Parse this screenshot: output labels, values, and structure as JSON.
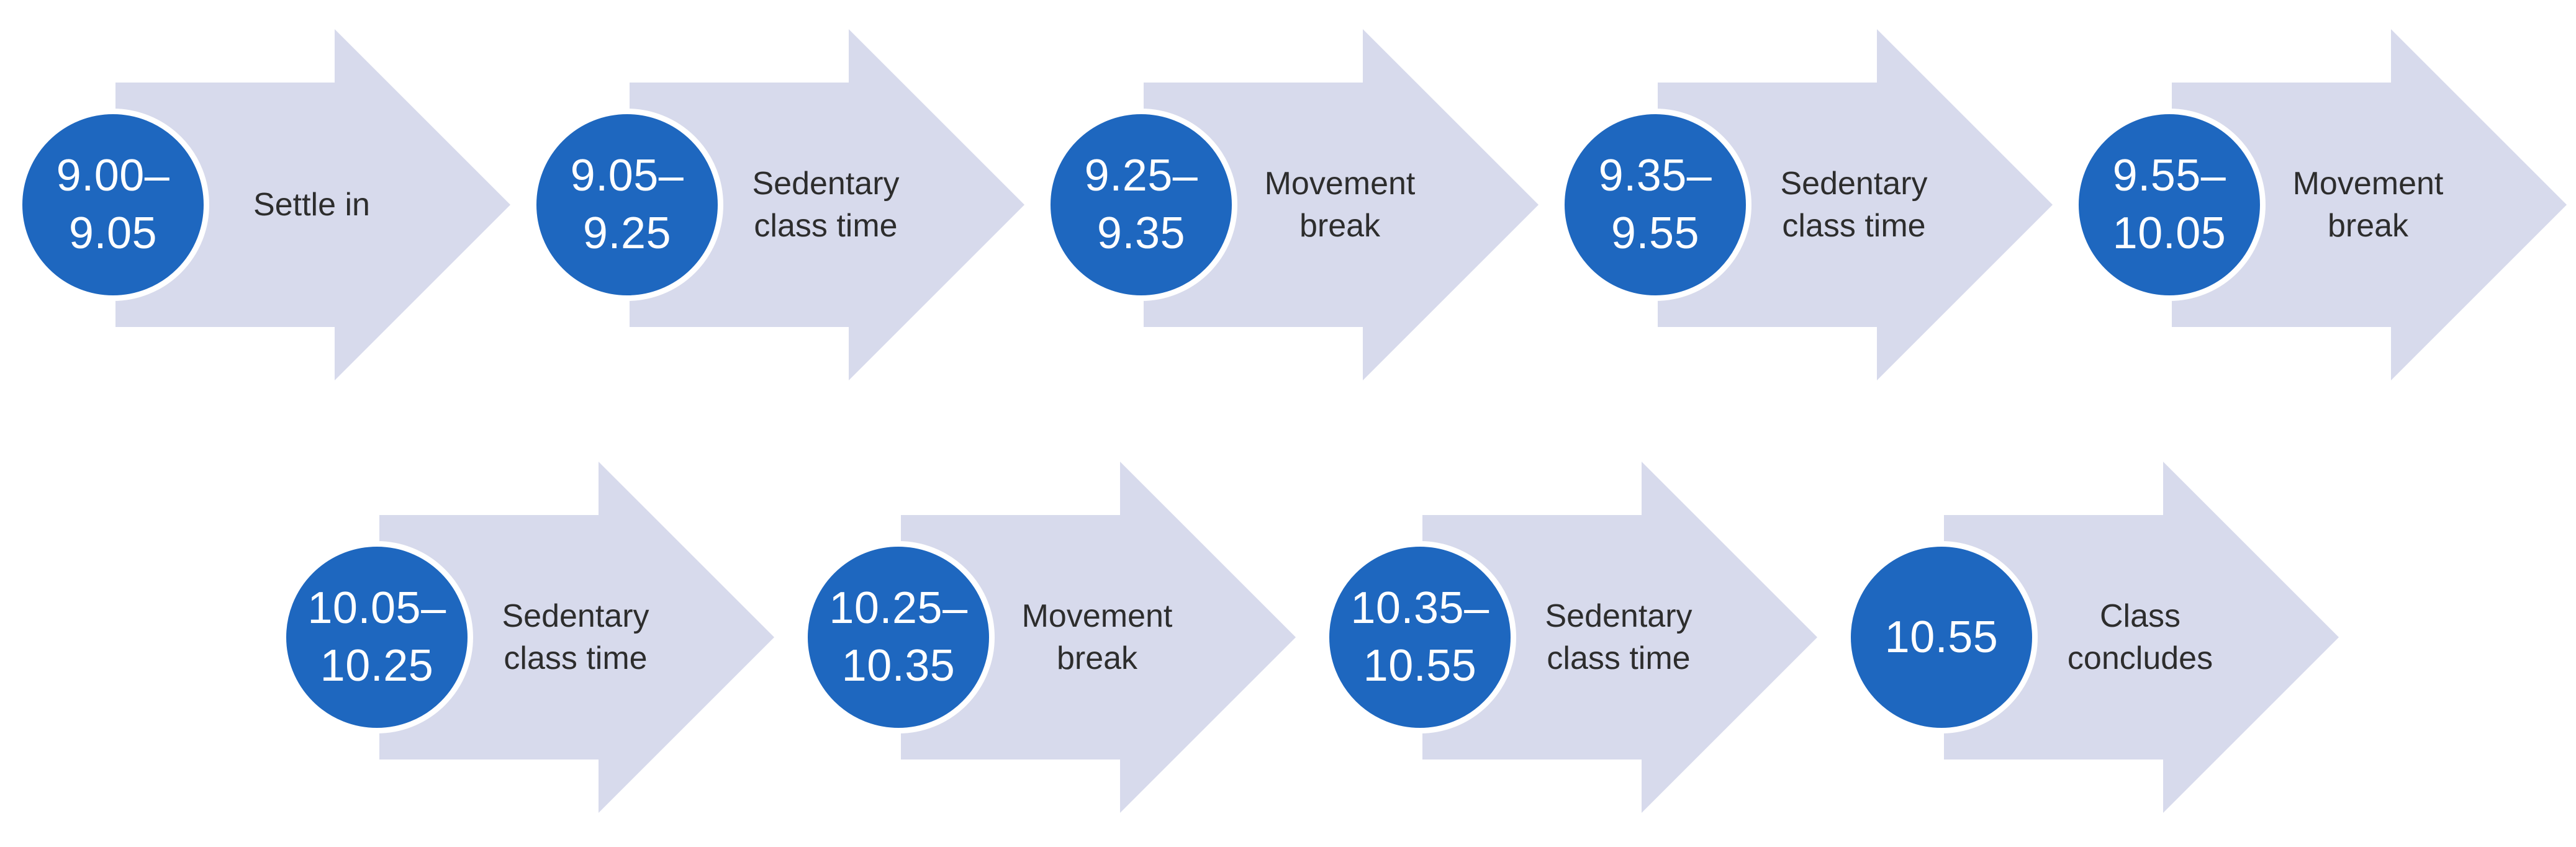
{
  "diagram": {
    "colors": {
      "circle_blue": "#1E67BF",
      "circle_ring": "#FFFFFF",
      "arrow_fill": "#D7DAEC",
      "time_text": "#FFFFFF",
      "label_text": "#2D2D2D",
      "background": "#FFFFFF"
    },
    "rows": [
      {
        "steps": [
          {
            "time": "9.00–9.05",
            "time_lines": [
              "9.00–",
              "9.05"
            ],
            "label": "Settle in",
            "label_lines": [
              "Settle in"
            ]
          },
          {
            "time": "9.05–9.25",
            "time_lines": [
              "9.05–",
              "9.25"
            ],
            "label": "Sedentary class time",
            "label_lines": [
              "Sedentary",
              "class time"
            ]
          },
          {
            "time": "9.25–9.35",
            "time_lines": [
              "9.25–",
              "9.35"
            ],
            "label": "Movement break",
            "label_lines": [
              "Movement",
              "break"
            ]
          },
          {
            "time": "9.35–9.55",
            "time_lines": [
              "9.35–",
              "9.55"
            ],
            "label": "Sedentary class time",
            "label_lines": [
              "Sedentary",
              "class time"
            ]
          },
          {
            "time": "9.55–10.05",
            "time_lines": [
              "9.55–",
              "10.05"
            ],
            "label": "Movement break",
            "label_lines": [
              "Movement",
              "break"
            ]
          }
        ]
      },
      {
        "steps": [
          {
            "time": "10.05–10.25",
            "time_lines": [
              "10.05–",
              "10.25"
            ],
            "label": "Sedentary class time",
            "label_lines": [
              "Sedentary",
              "class time"
            ]
          },
          {
            "time": "10.25–10.35",
            "time_lines": [
              "10.25–",
              "10.35"
            ],
            "label": "Movement break",
            "label_lines": [
              "Movement",
              "break"
            ]
          },
          {
            "time": "10.35–10.55",
            "time_lines": [
              "10.35–",
              "10.55"
            ],
            "label": "Sedentary class time",
            "label_lines": [
              "Sedentary",
              "class time"
            ]
          },
          {
            "time": "10.55",
            "time_lines": [
              "10.55"
            ],
            "label": "Class concludes",
            "label_lines": [
              "Class",
              "concludes"
            ]
          }
        ]
      }
    ]
  }
}
